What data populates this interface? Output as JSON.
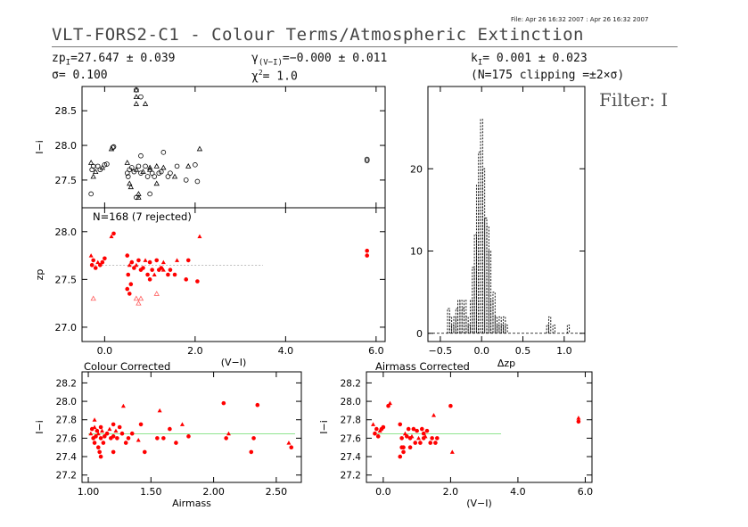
{
  "header": {
    "file_info": "File: Apr 26 16:32 2007 : Apr 26 16:32 2007",
    "title": "VLT-FORS2-C1 - Colour Terms/Atmospheric Extinction",
    "zp_label": "zp",
    "zp_sub": "I",
    "zp_value": "=27.647 ± 0.039",
    "sigma_text": "σ= 0.100",
    "gamma_label": "γ",
    "gamma_sub": "(V−I)",
    "gamma_value": "=−0.000 ± 0.011",
    "chi_label": "χ",
    "chi_sup": "2",
    "chi_value": "= 1.0",
    "k_label": "k",
    "k_sub": "I",
    "k_value": "= 0.001 ± 0.023",
    "clip_text": "(N=175 clipping =±2×σ)",
    "filter": "Filter: I"
  },
  "labels": {
    "rejected": "N=168 (7 rejected)",
    "colour_corrected": "Colour Corrected",
    "airmass_corrected": "Airmass Corrected"
  },
  "colors": {
    "accepted": "#ff0000",
    "rejected": "#ff6060",
    "raw": "#000000",
    "fit_line_top": "#aaaaaa",
    "fit_line_bottom": "#80e080"
  },
  "chart_data": [
    {
      "id": "raw",
      "type": "scatter",
      "xlim": [
        -0.5,
        6.2
      ],
      "ylim": [
        27.1,
        28.85
      ],
      "ylabel": "I−i",
      "yticks": [
        27.5,
        28.0,
        28.5
      ],
      "x": [
        -0.3,
        -0.28,
        -0.25,
        -0.2,
        -0.15,
        -0.1,
        -0.05,
        0.0,
        0.05,
        0.15,
        0.18,
        0.2,
        0.5,
        0.52,
        0.55,
        0.58,
        0.6,
        0.65,
        0.7,
        0.75,
        0.8,
        0.85,
        0.9,
        0.95,
        1.0,
        1.05,
        1.1,
        1.15,
        1.2,
        1.25,
        1.3,
        1.4,
        1.45,
        1.55,
        1.6,
        1.8,
        1.85,
        2.0,
        2.05,
        2.1,
        -0.3,
        0.5,
        0.55,
        0.7,
        0.8,
        0.9,
        1.0,
        0.7,
        1.15,
        5.8,
        5.8,
        -0.25,
        1.3,
        0.8,
        1.0
      ],
      "y": [
        27.75,
        27.65,
        27.7,
        27.62,
        27.7,
        27.65,
        27.68,
        27.72,
        27.73,
        27.95,
        27.97,
        27.98,
        27.75,
        27.55,
        27.65,
        27.4,
        27.68,
        27.62,
        27.65,
        27.7,
        27.6,
        27.62,
        27.7,
        27.55,
        27.68,
        27.6,
        27.55,
        27.7,
        27.6,
        27.62,
        27.68,
        27.55,
        27.6,
        27.55,
        27.7,
        27.5,
        27.7,
        27.72,
        27.48,
        27.95,
        27.3,
        27.6,
        27.45,
        28.8,
        28.7,
        28.6,
        27.3,
        27.25,
        27.45,
        27.8,
        27.78,
        27.55,
        27.9,
        27.85,
        27.65
      ],
      "rejected_x": [
        0.7,
        0.7,
        0.7,
        0.75,
        0.75
      ],
      "rejected_y": [
        28.8,
        28.7,
        28.6,
        27.3,
        27.25
      ]
    },
    {
      "id": "zp",
      "type": "scatter",
      "xlim": [
        -0.5,
        6.2
      ],
      "ylim": [
        26.85,
        28.25
      ],
      "ylabel": "zp_I",
      "xlabel": "(V−I)",
      "yticks": [
        27.0,
        27.5,
        28.0
      ],
      "xticks": [
        0.0,
        2.0,
        4.0,
        6.0
      ],
      "fit_y": 27.647,
      "fit_x_range": [
        -0.3,
        3.5
      ],
      "x": [
        -0.3,
        -0.28,
        -0.25,
        -0.2,
        -0.15,
        -0.1,
        -0.05,
        0.0,
        0.15,
        0.2,
        0.5,
        0.52,
        0.55,
        0.58,
        0.6,
        0.65,
        0.7,
        0.75,
        0.8,
        0.85,
        0.9,
        0.95,
        1.0,
        1.05,
        1.1,
        1.15,
        1.2,
        1.25,
        1.3,
        1.4,
        1.45,
        1.55,
        1.6,
        1.8,
        1.85,
        2.05,
        2.1,
        0.5,
        0.55,
        1.0,
        1.3,
        5.8,
        5.8
      ],
      "y": [
        27.75,
        27.65,
        27.7,
        27.62,
        27.68,
        27.65,
        27.68,
        27.72,
        27.95,
        27.98,
        27.75,
        27.55,
        27.65,
        27.45,
        27.68,
        27.62,
        27.65,
        27.7,
        27.6,
        27.62,
        27.7,
        27.55,
        27.68,
        27.6,
        27.55,
        27.7,
        27.6,
        27.62,
        27.68,
        27.55,
        27.6,
        27.55,
        27.7,
        27.5,
        27.7,
        27.48,
        27.95,
        27.4,
        27.35,
        27.5,
        27.6,
        27.8,
        27.75
      ],
      "rejected_x": [
        -0.25,
        0.7,
        0.75,
        1.15,
        0.8
      ],
      "rejected_y": [
        27.3,
        27.3,
        27.25,
        27.35,
        27.3
      ]
    },
    {
      "id": "hist",
      "type": "histogram",
      "xlim": [
        -0.65,
        1.25
      ],
      "ylim": [
        -1,
        30
      ],
      "xlabel": "Δzp_I",
      "xticks": [
        -0.5,
        0.0,
        0.5,
        1.0
      ],
      "yticks": [
        0,
        10,
        20
      ],
      "bin_width": 0.025,
      "bins_x": [
        -0.4,
        -0.375,
        -0.35,
        -0.325,
        -0.3,
        -0.275,
        -0.25,
        -0.225,
        -0.2,
        -0.175,
        -0.15,
        -0.125,
        -0.1,
        -0.075,
        -0.05,
        -0.025,
        0.0,
        0.025,
        0.05,
        0.075,
        0.1,
        0.125,
        0.15,
        0.175,
        0.2,
        0.225,
        0.25,
        0.275,
        0.3,
        0.8,
        0.825,
        0.875,
        1.05
      ],
      "counts": [
        3,
        2,
        1,
        2,
        3,
        4,
        4,
        3,
        4,
        2,
        1,
        4,
        8,
        12,
        18,
        22,
        26,
        20,
        14,
        13,
        10,
        4,
        5,
        2,
        1,
        2,
        1,
        2,
        1,
        1,
        2,
        1,
        1
      ]
    },
    {
      "id": "colour",
      "type": "scatter",
      "title": "Colour Corrected",
      "xlim": [
        0.95,
        2.7
      ],
      "ylim": [
        27.12,
        28.32
      ],
      "ylabel": "I−i",
      "xlabel": "Airmass",
      "yticks": [
        27.2,
        27.4,
        27.6,
        27.8,
        28.0,
        28.2
      ],
      "xticks": [
        1.0,
        1.5,
        2.0,
        2.5
      ],
      "fit_y": 27.647,
      "fit_x_range": [
        1.0,
        2.65
      ],
      "x": [
        1.02,
        1.03,
        1.04,
        1.05,
        1.05,
        1.06,
        1.07,
        1.08,
        1.08,
        1.09,
        1.1,
        1.1,
        1.11,
        1.12,
        1.13,
        1.15,
        1.17,
        1.18,
        1.2,
        1.2,
        1.22,
        1.23,
        1.25,
        1.27,
        1.28,
        1.3,
        1.32,
        1.35,
        1.4,
        1.42,
        1.45,
        1.55,
        1.57,
        1.6,
        1.65,
        1.7,
        1.75,
        1.8,
        2.08,
        2.1,
        2.12,
        2.3,
        2.32,
        2.35,
        2.6,
        2.62,
        1.1,
        1.2,
        1.05
      ],
      "y": [
        27.65,
        27.7,
        27.6,
        27.55,
        27.72,
        27.62,
        27.68,
        27.5,
        27.65,
        27.45,
        27.6,
        27.72,
        27.68,
        27.55,
        27.62,
        27.65,
        27.7,
        27.6,
        27.75,
        27.62,
        27.68,
        27.6,
        27.72,
        27.65,
        27.95,
        27.55,
        27.6,
        27.65,
        27.58,
        27.75,
        27.45,
        27.6,
        27.9,
        27.6,
        27.7,
        27.55,
        27.75,
        27.62,
        27.98,
        27.6,
        27.65,
        27.45,
        27.6,
        27.96,
        27.55,
        27.5,
        27.4,
        27.45,
        27.8
      ],
      "rejected_x": [],
      "rejected_y": []
    },
    {
      "id": "airmass",
      "type": "scatter",
      "title": "Airmass Corrected",
      "xlim": [
        -0.5,
        6.2
      ],
      "ylim": [
        27.12,
        28.32
      ],
      "ylabel": "I−i",
      "xlabel": "(V−I)",
      "yticks": [
        27.2,
        27.4,
        27.6,
        27.8,
        28.0,
        28.2
      ],
      "xticks": [
        0.0,
        2.0,
        4.0,
        6.0
      ],
      "fit_y": 27.647,
      "fit_x_range": [
        -0.3,
        3.5
      ],
      "x": [
        -0.3,
        -0.25,
        -0.2,
        -0.15,
        -0.1,
        -0.05,
        0.0,
        0.15,
        0.2,
        0.5,
        0.55,
        0.6,
        0.65,
        0.7,
        0.75,
        0.8,
        0.85,
        0.9,
        0.95,
        1.0,
        1.05,
        1.1,
        1.15,
        1.2,
        1.25,
        1.3,
        1.4,
        1.45,
        1.5,
        1.55,
        1.6,
        2.0,
        2.05,
        0.5,
        0.6,
        0.55,
        5.8,
        5.8,
        0.8,
        1.2
      ],
      "y": [
        27.75,
        27.65,
        27.7,
        27.62,
        27.68,
        27.7,
        27.72,
        27.95,
        27.98,
        27.75,
        27.6,
        27.5,
        27.65,
        27.62,
        27.7,
        27.6,
        27.62,
        27.7,
        27.55,
        27.68,
        27.6,
        27.55,
        27.7,
        27.6,
        27.62,
        27.68,
        27.55,
        27.6,
        27.85,
        27.55,
        27.6,
        27.95,
        27.45,
        27.4,
        27.45,
        27.5,
        27.82,
        27.78,
        27.5,
        27.65
      ],
      "rejected_x": [],
      "rejected_y": []
    }
  ]
}
